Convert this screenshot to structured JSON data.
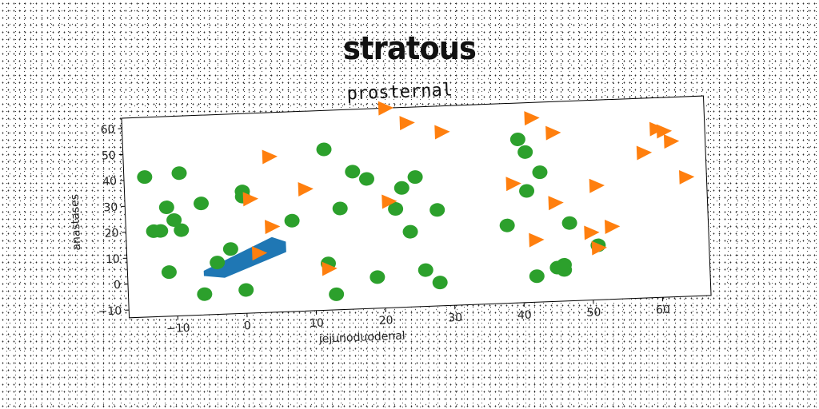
{
  "page_title": "stratous",
  "chart_data": {
    "type": "scatter",
    "title": "prosternal",
    "xlabel": "jejunoduodenal",
    "ylabel": "anastases",
    "xlim": [
      -17,
      67
    ],
    "ylim": [
      -13,
      64
    ],
    "xticks": [
      -10,
      0,
      10,
      20,
      30,
      40,
      50,
      60
    ],
    "xtick_labels": [
      "−10",
      "0",
      "10",
      "20",
      "30",
      "40",
      "50",
      "60"
    ],
    "yticks": [
      -10,
      0,
      10,
      20,
      30,
      40,
      50,
      60
    ],
    "ytick_labels": [
      "−10",
      "0",
      "10",
      "20",
      "30",
      "40",
      "50",
      "60"
    ],
    "colors": {
      "polygon": "#1f77b4",
      "triangles": "#ff7f0e",
      "circles": "#2ca02c"
    },
    "polygon": [
      [
        -6,
        4
      ],
      [
        4,
        16
      ],
      [
        6,
        14
      ],
      [
        6,
        10
      ],
      [
        -3,
        1
      ],
      [
        -6,
        2
      ]
    ],
    "series": [
      {
        "name": "circles",
        "marker": "circle",
        "x": [
          -14,
          -9,
          -11,
          -10,
          -12,
          -13,
          -6,
          0,
          0,
          -9,
          -2,
          -4,
          -6,
          -11,
          0,
          7,
          12,
          16,
          18,
          14,
          22,
          23,
          25,
          28,
          24,
          12,
          13,
          19,
          26,
          28,
          38,
          41,
          40,
          43,
          41,
          46,
          47,
          51,
          42,
          45,
          46
        ],
        "y": [
          41,
          42,
          29,
          24,
          20,
          20,
          30,
          34,
          32,
          20,
          12,
          7,
          -5,
          4,
          -4,
          22,
          49,
          40,
          37,
          26,
          25,
          33,
          37,
          24,
          16,
          5,
          -7,
          -1,
          1,
          -4,
          17,
          45,
          50,
          37,
          30,
          1,
          17,
          8,
          -3,
          0,
          -1
        ]
      },
      {
        "name": "triangles",
        "marker": "triangle-right",
        "x": [
          21,
          24,
          29,
          42,
          45,
          4,
          9,
          1,
          4,
          2,
          12,
          21,
          39,
          51,
          45,
          42,
          50,
          53,
          51,
          58,
          60,
          62,
          61,
          64
        ],
        "y": [
          64,
          58,
          54,
          58,
          52,
          47,
          34,
          31,
          20,
          10,
          3,
          28,
          33,
          31,
          25,
          11,
          13,
          15,
          7,
          43,
          52,
          47,
          51,
          33
        ]
      }
    ]
  }
}
